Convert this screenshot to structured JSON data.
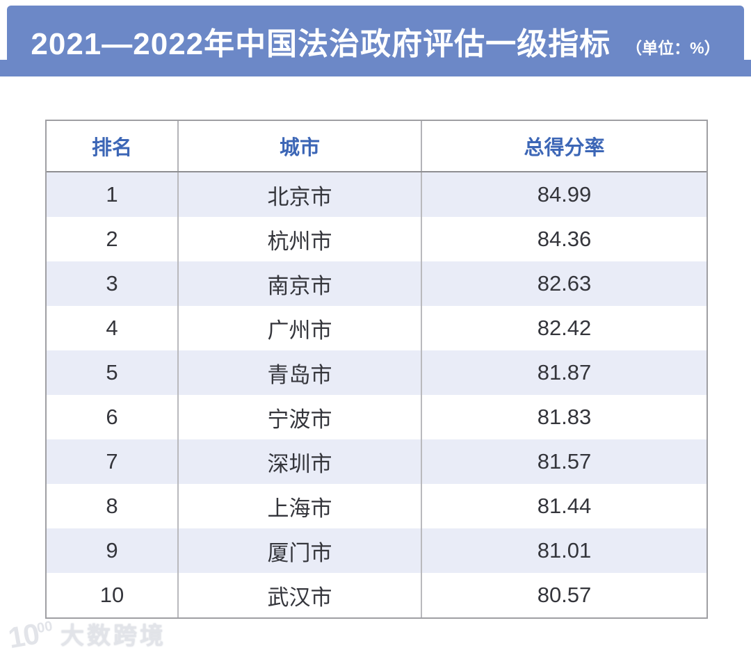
{
  "banner": {
    "title": "2021—2022年中国法治政府评估一级指标",
    "unit_note": "（单位：%）",
    "color": "#6c88c7"
  },
  "chart_data": {
    "type": "table",
    "title": "2021—2022年中国法治政府评估一级指标",
    "unit": "%",
    "columns": [
      "排名",
      "城市",
      "总得分率"
    ],
    "rows": [
      [
        1,
        "北京市",
        84.99
      ],
      [
        2,
        "杭州市",
        84.36
      ],
      [
        3,
        "南京市",
        82.63
      ],
      [
        4,
        "广州市",
        82.42
      ],
      [
        5,
        "青岛市",
        81.87
      ],
      [
        6,
        "宁波市",
        81.83
      ],
      [
        7,
        "深圳市",
        81.57
      ],
      [
        8,
        "上海市",
        81.44
      ],
      [
        9,
        "厦门市",
        81.01
      ],
      [
        10,
        "武汉市",
        80.57
      ]
    ],
    "header_text_color": "#3c66b6",
    "stripe_color": "#e9ecf7",
    "layout_hints": {
      "stripes": "odd rows shaded, starting with rank 1",
      "column_borders": true,
      "row_borders": false
    }
  },
  "watermark": {
    "mark": "10",
    "mark_sup": "00",
    "brand": "大数跨境"
  }
}
